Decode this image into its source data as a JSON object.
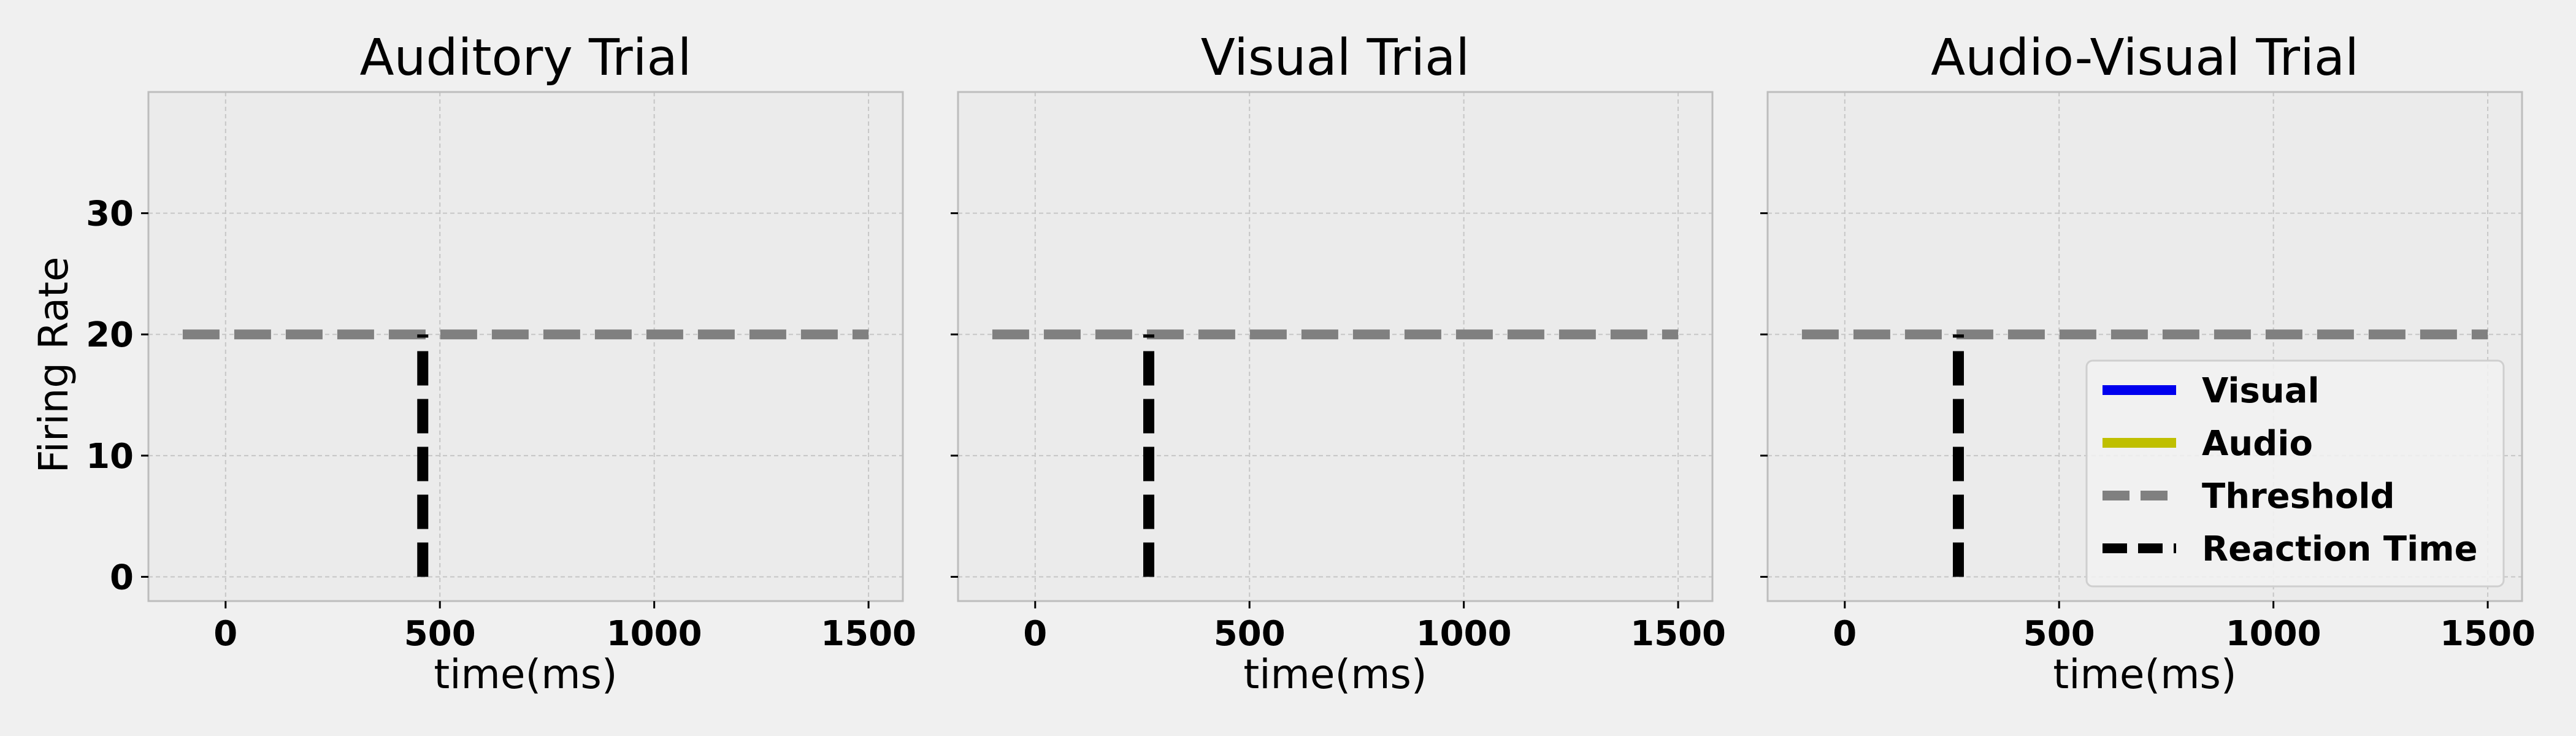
{
  "style": {
    "figure_background": "#f0f0f0",
    "axes_background": "#ebebeb",
    "axes_border": "#bdbdbd",
    "grid_color": "#c6c6c6"
  },
  "chart_data": [
    {
      "type": "line",
      "title": "Auditory Trial",
      "xlabel": "time(ms)",
      "ylabel": "Firing Rate",
      "xlim": [
        -180,
        1580
      ],
      "ylim": [
        -2,
        40
      ],
      "xticks": [
        0,
        500,
        1000,
        1500
      ],
      "yticks": [
        0,
        10,
        20,
        30
      ],
      "show_y_tick_labels": true,
      "grid": true,
      "series": [
        {
          "name": "Visual",
          "color": "#0000ee",
          "style": "solid",
          "x": [],
          "y": []
        },
        {
          "name": "Audio",
          "color": "#bfbf00",
          "style": "solid",
          "x": [],
          "y": []
        },
        {
          "name": "Threshold",
          "color": "#808080",
          "style": "dashed",
          "x": [
            -100,
            1500
          ],
          "y": [
            20,
            20
          ]
        },
        {
          "name": "Reaction Time",
          "color": "#000000",
          "style": "dashed",
          "x": [
            460,
            460
          ],
          "y": [
            0,
            20
          ]
        }
      ],
      "legend": false
    },
    {
      "type": "line",
      "title": "Visual Trial",
      "xlabel": "time(ms)",
      "ylabel": "",
      "xlim": [
        -180,
        1580
      ],
      "ylim": [
        -2,
        40
      ],
      "xticks": [
        0,
        500,
        1000,
        1500
      ],
      "yticks": [
        0,
        10,
        20,
        30
      ],
      "show_y_tick_labels": false,
      "grid": true,
      "series": [
        {
          "name": "Visual",
          "color": "#0000ee",
          "style": "solid",
          "x": [],
          "y": []
        },
        {
          "name": "Audio",
          "color": "#bfbf00",
          "style": "solid",
          "x": [],
          "y": []
        },
        {
          "name": "Threshold",
          "color": "#808080",
          "style": "dashed",
          "x": [
            -100,
            1500
          ],
          "y": [
            20,
            20
          ]
        },
        {
          "name": "Reaction Time",
          "color": "#000000",
          "style": "dashed",
          "x": [
            265,
            265
          ],
          "y": [
            0,
            20
          ]
        }
      ],
      "legend": false
    },
    {
      "type": "line",
      "title": "Audio-Visual Trial",
      "xlabel": "time(ms)",
      "ylabel": "",
      "xlim": [
        -180,
        1580
      ],
      "ylim": [
        -2,
        40
      ],
      "xticks": [
        0,
        500,
        1000,
        1500
      ],
      "yticks": [
        0,
        10,
        20,
        30
      ],
      "show_y_tick_labels": false,
      "grid": true,
      "series": [
        {
          "name": "Visual",
          "color": "#0000ee",
          "style": "solid",
          "x": [],
          "y": []
        },
        {
          "name": "Audio",
          "color": "#bfbf00",
          "style": "solid",
          "x": [],
          "y": []
        },
        {
          "name": "Threshold",
          "color": "#808080",
          "style": "dashed",
          "x": [
            -100,
            1500
          ],
          "y": [
            20,
            20
          ]
        },
        {
          "name": "Reaction Time",
          "color": "#000000",
          "style": "dashed",
          "x": [
            265,
            265
          ],
          "y": [
            0,
            20
          ]
        }
      ],
      "legend": true,
      "legend_placement": "lower right",
      "legend_entries": [
        "Visual",
        "Audio",
        "Threshold",
        "Reaction Time"
      ]
    }
  ]
}
